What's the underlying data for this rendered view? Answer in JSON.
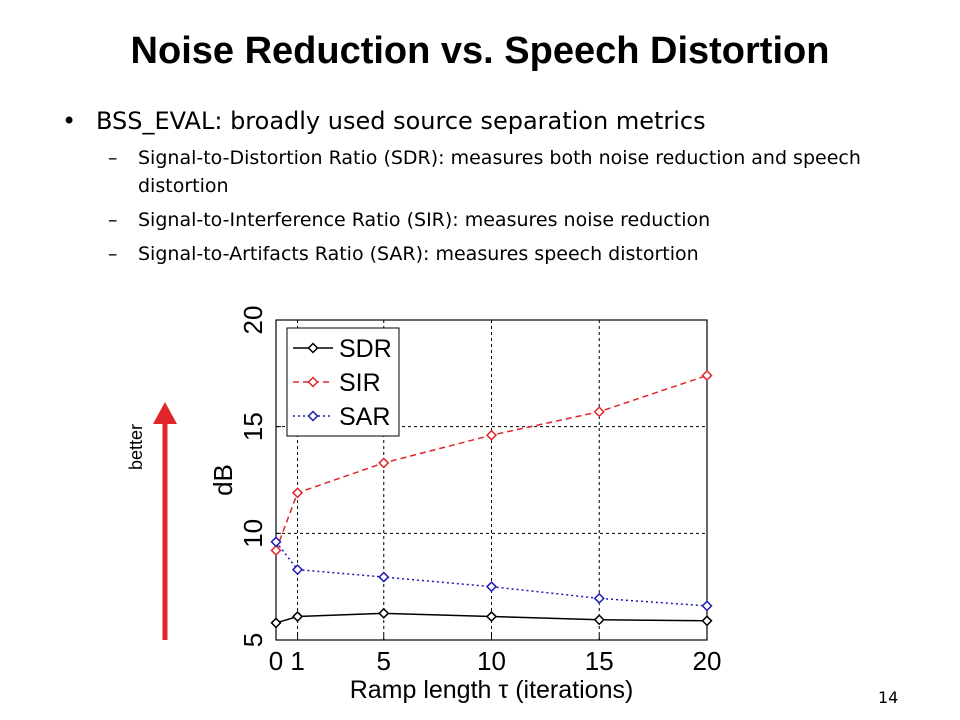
{
  "slide": {
    "title": "Noise Reduction vs. Speech Distortion",
    "bullet": {
      "marker": "•",
      "text": "BSS_EVAL: broadly used source separation metrics"
    },
    "sub_bullets": [
      {
        "marker": "–",
        "text": "Signal-to-Distortion Ratio (SDR): measures both noise reduction and speech distortion"
      },
      {
        "marker": "–",
        "text": "Signal-to-Interference Ratio (SIR): measures noise reduction"
      },
      {
        "marker": "–",
        "text": "Signal-to-Artifacts Ratio (SAR): measures speech distortion"
      }
    ],
    "page_number": "14"
  },
  "chart_data": {
    "type": "line",
    "title": "",
    "xlabel": "Ramp length τ (iterations)",
    "ylabel": "dB",
    "xlim": [
      0,
      20
    ],
    "ylim": [
      5,
      20
    ],
    "x": [
      0,
      1,
      5,
      10,
      15,
      20
    ],
    "xticks": [
      "0",
      "1",
      "5",
      "10",
      "15",
      "20"
    ],
    "yticks": [
      "5",
      "10",
      "15",
      "20"
    ],
    "grid": true,
    "legend_position": "top-left",
    "series": [
      {
        "name": "SDR",
        "color": "#000000",
        "style": "solid",
        "marker": "diamond",
        "values": [
          5.8,
          6.1,
          6.25,
          6.1,
          5.95,
          5.9
        ]
      },
      {
        "name": "SIR",
        "color": "#e0262b",
        "style": "dashed",
        "marker": "diamond",
        "values": [
          9.2,
          11.9,
          13.3,
          14.6,
          15.7,
          17.4
        ]
      },
      {
        "name": "SAR",
        "color": "#1a1ab4",
        "style": "dotted",
        "marker": "diamond",
        "values": [
          9.6,
          8.3,
          7.95,
          7.5,
          6.95,
          6.6
        ]
      }
    ],
    "annotation": {
      "text": "better",
      "arrow_color": "#e0262b",
      "direction": "up"
    }
  }
}
